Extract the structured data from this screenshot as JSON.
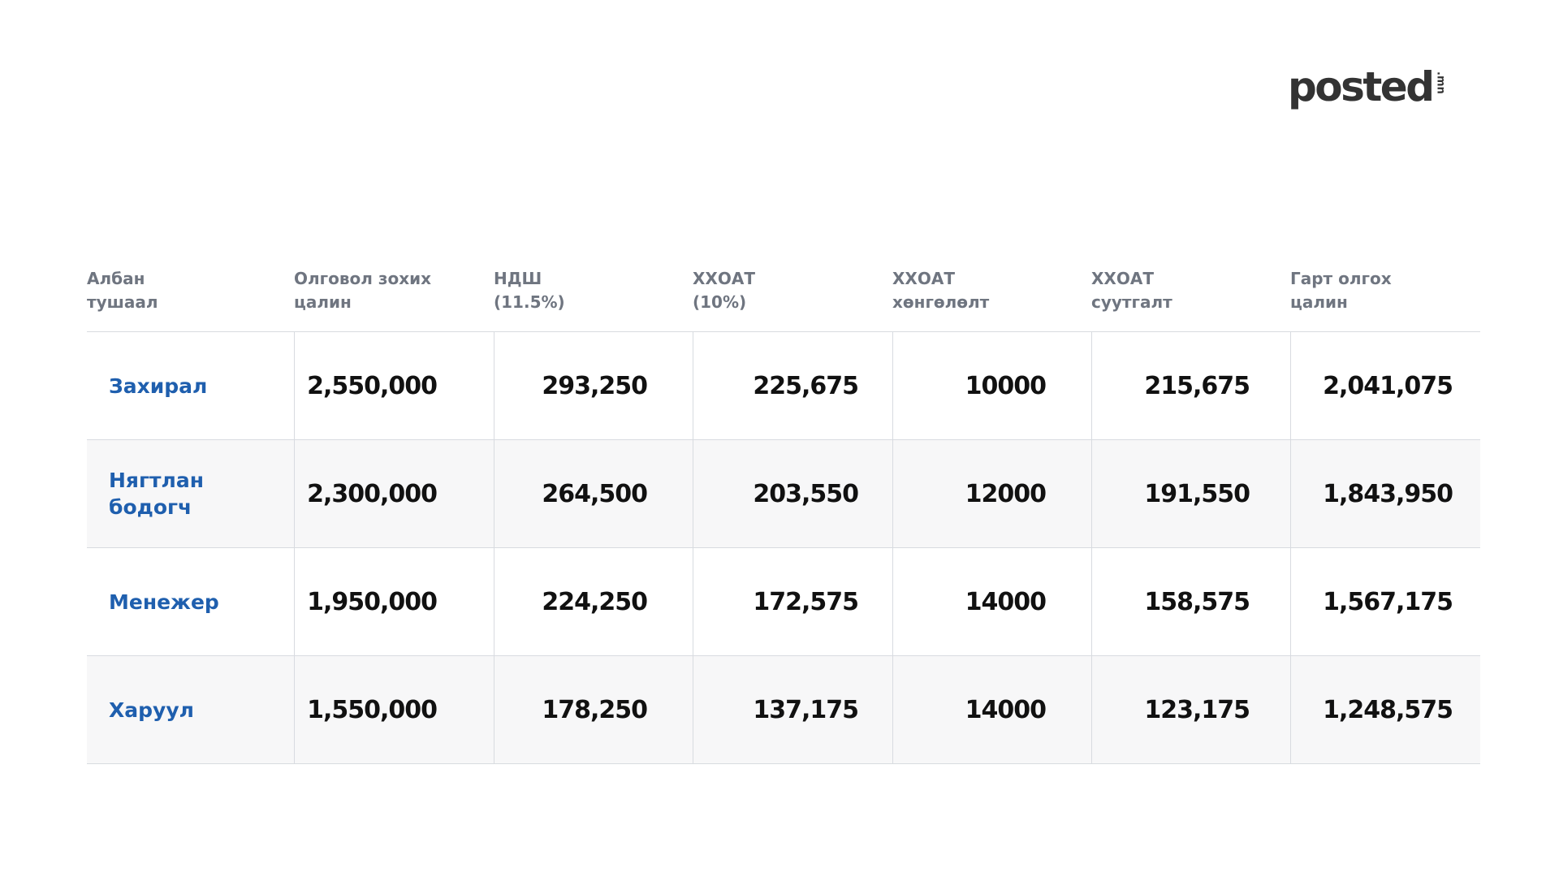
{
  "logo": {
    "wordmark": "posted",
    "tld": ".mn"
  },
  "table": {
    "headers": [
      [
        "Албан",
        "тушаал"
      ],
      [
        "Олговол зохих",
        "цалин"
      ],
      [
        "НДШ",
        "(11.5%)"
      ],
      [
        "ХХОАТ",
        "(10%)"
      ],
      [
        "ХХОАТ",
        "хөнгөлөлт"
      ],
      [
        "ХХОАТ",
        "суутгалт"
      ],
      [
        "Гарт олгох",
        "цалин"
      ]
    ],
    "rows": [
      [
        "Захирал",
        "2,550,000",
        "293,250",
        "225,675",
        "10000",
        "215,675",
        "2,041,075"
      ],
      [
        "Нягтлан\nбодогч",
        "2,300,000",
        "264,500",
        "203,550",
        "12000",
        "191,550",
        "1,843,950"
      ],
      [
        "Менежер",
        "1,950,000",
        "224,250",
        "172,575",
        "14000",
        "158,575",
        "1,567,175"
      ],
      [
        "Харуул",
        "1,550,000",
        "178,250",
        "137,175",
        "14000",
        "123,175",
        "1,248,575"
      ]
    ]
  },
  "colors": {
    "position_text": "#1f5fae",
    "header_text": "#6f7580",
    "value_text": "#111111",
    "alt_row_bg": "#f7f7f8",
    "grid_line": "#d8dbe0"
  }
}
